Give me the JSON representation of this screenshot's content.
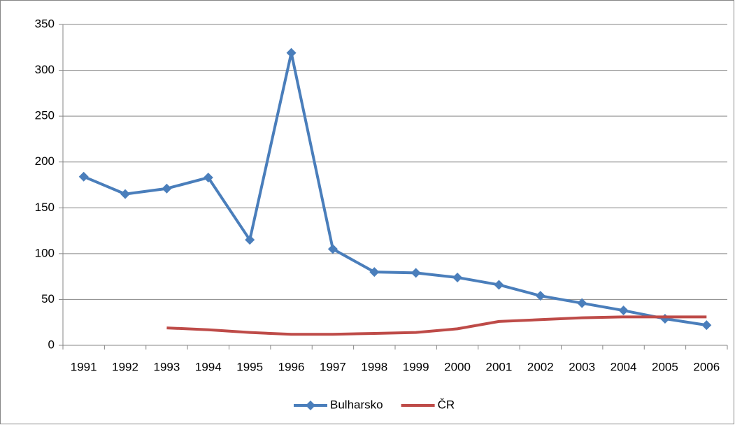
{
  "chart_data": {
    "type": "line",
    "categories": [
      "1991",
      "1992",
      "1993",
      "1994",
      "1995",
      "1996",
      "1997",
      "1998",
      "1999",
      "2000",
      "2001",
      "2002",
      "2003",
      "2004",
      "2005",
      "2006"
    ],
    "series": [
      {
        "name": "Bulharsko",
        "color": "#4a7ebb",
        "marker": "diamond",
        "values": [
          184,
          165,
          171,
          183,
          115,
          319,
          105,
          80,
          79,
          74,
          66,
          54,
          46,
          38,
          29,
          22
        ]
      },
      {
        "name": "ČR",
        "color": "#be4b48",
        "values": [
          null,
          null,
          19,
          17,
          14,
          12,
          12,
          13,
          14,
          18,
          26,
          28,
          30,
          31,
          31,
          31
        ]
      }
    ],
    "ylim": [
      0,
      350
    ],
    "yticks": [
      0,
      50,
      100,
      150,
      200,
      250,
      300,
      350
    ],
    "grid": true,
    "legend": "bottom"
  }
}
